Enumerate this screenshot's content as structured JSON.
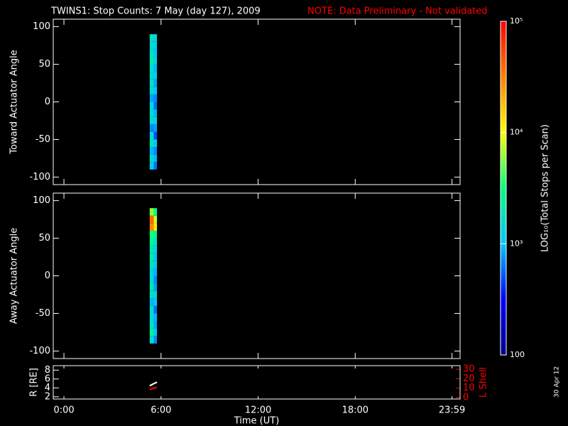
{
  "header": {
    "title": "TWINS1: Stop Counts:  7 May (day 127), 2009",
    "note": "NOTE: Data Preliminary - Not validated",
    "stamp": "30 Apr 12"
  },
  "chart_data": [
    {
      "type": "heatmap",
      "ylabel": "Toward Actuator Angle",
      "xbins": [
        5.3,
        5.55,
        5.75
      ],
      "ybins": [
        -90,
        -80,
        -70,
        -60,
        -50,
        -40,
        -30,
        -20,
        -10,
        0,
        10,
        20,
        30,
        40,
        50,
        60,
        70,
        80,
        90
      ],
      "z": [
        [
          1200,
          1500,
          900,
          1800,
          1500,
          700,
          1400,
          1600,
          1300,
          800,
          1500,
          1700,
          1400,
          1600,
          2000,
          1800,
          1500,
          1700
        ],
        [
          600,
          900,
          700,
          1100,
          500,
          800,
          1200,
          900,
          600,
          700,
          1000,
          800,
          1100,
          900,
          1300,
          1000,
          1200,
          1400
        ]
      ],
      "xlim": [
        -0.66,
        24.48
      ],
      "ylim": [
        -110,
        110
      ],
      "xticks": [
        0,
        6,
        12,
        18,
        23.98
      ],
      "yticks": [
        -100,
        -50,
        0,
        50,
        100
      ]
    },
    {
      "type": "heatmap",
      "ylabel": "Away Actuator Angle",
      "xbins": [
        5.3,
        5.55,
        5.75
      ],
      "ybins": [
        -90,
        -80,
        -70,
        -60,
        -50,
        -40,
        -30,
        -20,
        -10,
        0,
        10,
        20,
        30,
        40,
        50,
        60,
        70,
        80,
        90
      ],
      "z": [
        [
          1500,
          2500,
          1800,
          1400,
          1600,
          900,
          1700,
          2000,
          1500,
          1200,
          1800,
          2200,
          1900,
          2600,
          3500,
          30000,
          40000,
          6000
        ],
        [
          700,
          1000,
          800,
          900,
          600,
          1000,
          1300,
          800,
          700,
          900,
          1200,
          1000,
          1400,
          1700,
          2500,
          12000,
          8000,
          3000
        ]
      ],
      "xlim": [
        -0.66,
        24.48
      ],
      "ylim": [
        -110,
        110
      ],
      "xticks": [
        0,
        6,
        12,
        18,
        23.98
      ],
      "yticks": [
        -100,
        -50,
        0,
        50,
        100
      ]
    },
    {
      "type": "line",
      "xlabel": "Time (UT)",
      "ylabel": "R [RE]",
      "y2label": "L Shell",
      "x": [
        5.3,
        5.75
      ],
      "series": [
        {
          "color": "#ffffff",
          "values": [
            4.5,
            5.3
          ]
        },
        {
          "color": "#ff0000",
          "axis": "y2",
          "values": [
            8.5,
            11
          ]
        }
      ],
      "xlim": [
        -0.66,
        24.48
      ],
      "ylim": [
        1.5,
        9
      ],
      "y2lim": [
        -1.5,
        33.75
      ],
      "xticks": [
        {
          "value": 0,
          "label": "0:00"
        },
        {
          "value": 6,
          "label": "6:00"
        },
        {
          "value": 12,
          "label": "12:00"
        },
        {
          "value": 18,
          "label": "18:00"
        },
        {
          "value": 23.98,
          "label": "23:59"
        }
      ],
      "yticks": [
        2,
        4,
        6,
        8
      ],
      "y2ticks": [
        0,
        10,
        20,
        30
      ],
      "y2color": "#ff0000"
    },
    {
      "type": "colorbar",
      "label": "LOG₁₀(Total Stops per Scan)",
      "zlim": [
        100,
        100000
      ],
      "log": true,
      "ticks": [
        {
          "value": 100,
          "label": "100"
        },
        {
          "value": 1000,
          "label": "10³"
        },
        {
          "value": 10000,
          "label": "10⁴"
        },
        {
          "value": 100000,
          "label": "10⁵"
        }
      ],
      "colormap": [
        "#000090",
        "#0000ff",
        "#00c8ff",
        "#00ff80",
        "#ffff00",
        "#ff8000",
        "#ff0000"
      ]
    }
  ]
}
